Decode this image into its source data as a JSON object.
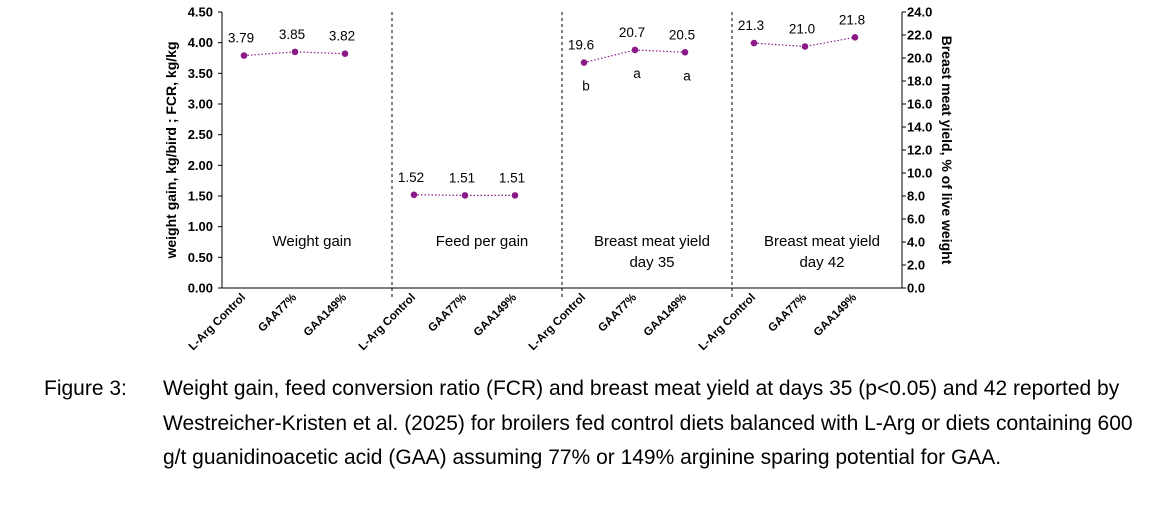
{
  "chart_data": {
    "type": "line",
    "y_left": {
      "label": "weight gain, kg/bird ; FCR, kg/kg",
      "range": [
        0,
        4.5
      ],
      "step": 0.5,
      "ticks": [
        "0.00",
        "0.50",
        "1.00",
        "1.50",
        "2.00",
        "2.50",
        "3.00",
        "3.50",
        "4.00",
        "4.50"
      ]
    },
    "y_right": {
      "label": "Breast meat yield, % of live weight",
      "range": [
        0,
        24
      ],
      "step": 2,
      "ticks": [
        "0.0",
        "2.0",
        "4.0",
        "6.0",
        "8.0",
        "10.0",
        "12.0",
        "14.0",
        "16.0",
        "18.0",
        "20.0",
        "22.0",
        "24.0"
      ]
    },
    "categories": [
      "L-Arg Control",
      "GAA77%",
      "GAA149%"
    ],
    "marker_color": "#8B1A89",
    "panels": [
      {
        "title_lines": [
          "Weight gain"
        ],
        "axis": "left",
        "values": [
          3.79,
          3.85,
          3.82
        ],
        "labels": [
          "3.79",
          "3.85",
          "3.82"
        ],
        "letters": []
      },
      {
        "title_lines": [
          "Feed per gain"
        ],
        "axis": "left",
        "values": [
          1.52,
          1.51,
          1.51
        ],
        "labels": [
          "1.52",
          "1.51",
          "1.51"
        ],
        "letters": []
      },
      {
        "title_lines": [
          "Breast meat yield",
          "day 35"
        ],
        "axis": "right",
        "values": [
          19.6,
          20.7,
          20.5
        ],
        "labels": [
          "19.6",
          "20.7",
          "20.5"
        ],
        "letters": [
          "b",
          "a",
          "a"
        ]
      },
      {
        "title_lines": [
          "Breast meat yield",
          "day 42"
        ],
        "axis": "right",
        "values": [
          21.3,
          21.0,
          21.8
        ],
        "labels": [
          "21.3",
          "21.0",
          "21.8"
        ],
        "letters": []
      }
    ]
  },
  "caption": {
    "label": "Figure 3:",
    "text": "Weight gain, feed conversion ratio (FCR) and breast meat yield at days 35 (p<0.05) and 42 reported by Westreicher-Kristen et al. (2025) for broilers fed control diets balanced with L-Arg or diets containing 600 g/t guanidinoacetic acid (GAA) assuming 77% or 149% arginine sparing potential for GAA."
  }
}
